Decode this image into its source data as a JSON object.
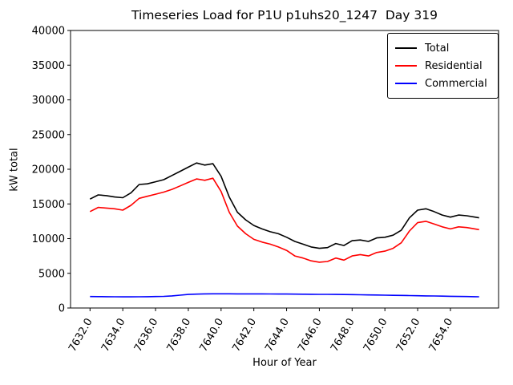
{
  "chart_data": {
    "type": "line",
    "title": "Timeseries Load for P1U p1uhs20_1247  Day 319",
    "xlabel": "Hour of Year",
    "ylabel": "kW total",
    "xlim": [
      7630.81,
      7656.94
    ],
    "ylim": [
      0,
      40000
    ],
    "grid": false,
    "legend_position": "upper right",
    "x_ticks": [
      7632,
      7634,
      7636,
      7638,
      7640,
      7642,
      7644,
      7646,
      7648,
      7650,
      7652,
      7654
    ],
    "x_tick_labels": [
      "7632.0",
      "7634.0",
      "7636.0",
      "7638.0",
      "7640.0",
      "7642.0",
      "7644.0",
      "7646.0",
      "7648.0",
      "7650.0",
      "7652.0",
      "7654.0"
    ],
    "y_ticks": [
      0,
      5000,
      10000,
      15000,
      20000,
      25000,
      30000,
      35000,
      40000
    ],
    "y_tick_labels": [
      "0",
      "5000",
      "10000",
      "15000",
      "20000",
      "25000",
      "30000",
      "35000",
      "40000"
    ],
    "x": [
      7632.0,
      7632.5,
      7633.0,
      7633.5,
      7634.0,
      7634.5,
      7635.0,
      7635.5,
      7636.0,
      7636.5,
      7637.0,
      7637.5,
      7638.0,
      7638.5,
      7639.0,
      7639.5,
      7640.0,
      7640.5,
      7641.0,
      7641.5,
      7642.0,
      7642.5,
      7643.0,
      7643.5,
      7644.0,
      7644.5,
      7645.0,
      7645.5,
      7646.0,
      7646.5,
      7647.0,
      7647.5,
      7648.0,
      7648.5,
      7649.0,
      7649.5,
      7650.0,
      7650.5,
      7651.0,
      7651.5,
      7652.0,
      7652.5,
      7653.0,
      7653.5,
      7654.0,
      7654.5,
      7655.0,
      7655.5,
      7655.75
    ],
    "series": [
      {
        "name": "Total",
        "color": "#000000",
        "values": [
          15700,
          16300,
          16200,
          16000,
          15900,
          16600,
          17800,
          17900,
          18200,
          18500,
          19100,
          19700,
          20300,
          20900,
          20600,
          20800,
          19000,
          16000,
          13800,
          12700,
          11900,
          11400,
          11000,
          10700,
          10200,
          9600,
          9200,
          8800,
          8600,
          8700,
          9300,
          9000,
          9700,
          9800,
          9600,
          10100,
          10200,
          10500,
          11200,
          13000,
          14100,
          14300,
          13900,
          13400,
          13100,
          13400,
          13300,
          13100,
          13000
        ]
      },
      {
        "name": "Residential",
        "color": "#ff0000",
        "values": [
          13900,
          14500,
          14400,
          14300,
          14100,
          14800,
          15800,
          16100,
          16400,
          16700,
          17100,
          17600,
          18100,
          18600,
          18400,
          18700,
          16800,
          13800,
          11800,
          10700,
          9900,
          9500,
          9200,
          8800,
          8300,
          7500,
          7200,
          6800,
          6600,
          6700,
          7200,
          6900,
          7500,
          7700,
          7500,
          8000,
          8200,
          8600,
          9400,
          11100,
          12300,
          12500,
          12100,
          11700,
          11400,
          11700,
          11600,
          11400,
          11300
        ]
      },
      {
        "name": "Commercial",
        "color": "#0000ff",
        "values": [
          1650,
          1640,
          1630,
          1620,
          1610,
          1610,
          1620,
          1630,
          1650,
          1680,
          1750,
          1850,
          1950,
          2000,
          2030,
          2050,
          2050,
          2050,
          2040,
          2040,
          2030,
          2030,
          2020,
          2010,
          2010,
          2000,
          1990,
          1980,
          1970,
          1960,
          1950,
          1940,
          1930,
          1910,
          1890,
          1870,
          1850,
          1830,
          1810,
          1790,
          1770,
          1750,
          1730,
          1710,
          1690,
          1670,
          1650,
          1630,
          1620
        ]
      }
    ]
  }
}
